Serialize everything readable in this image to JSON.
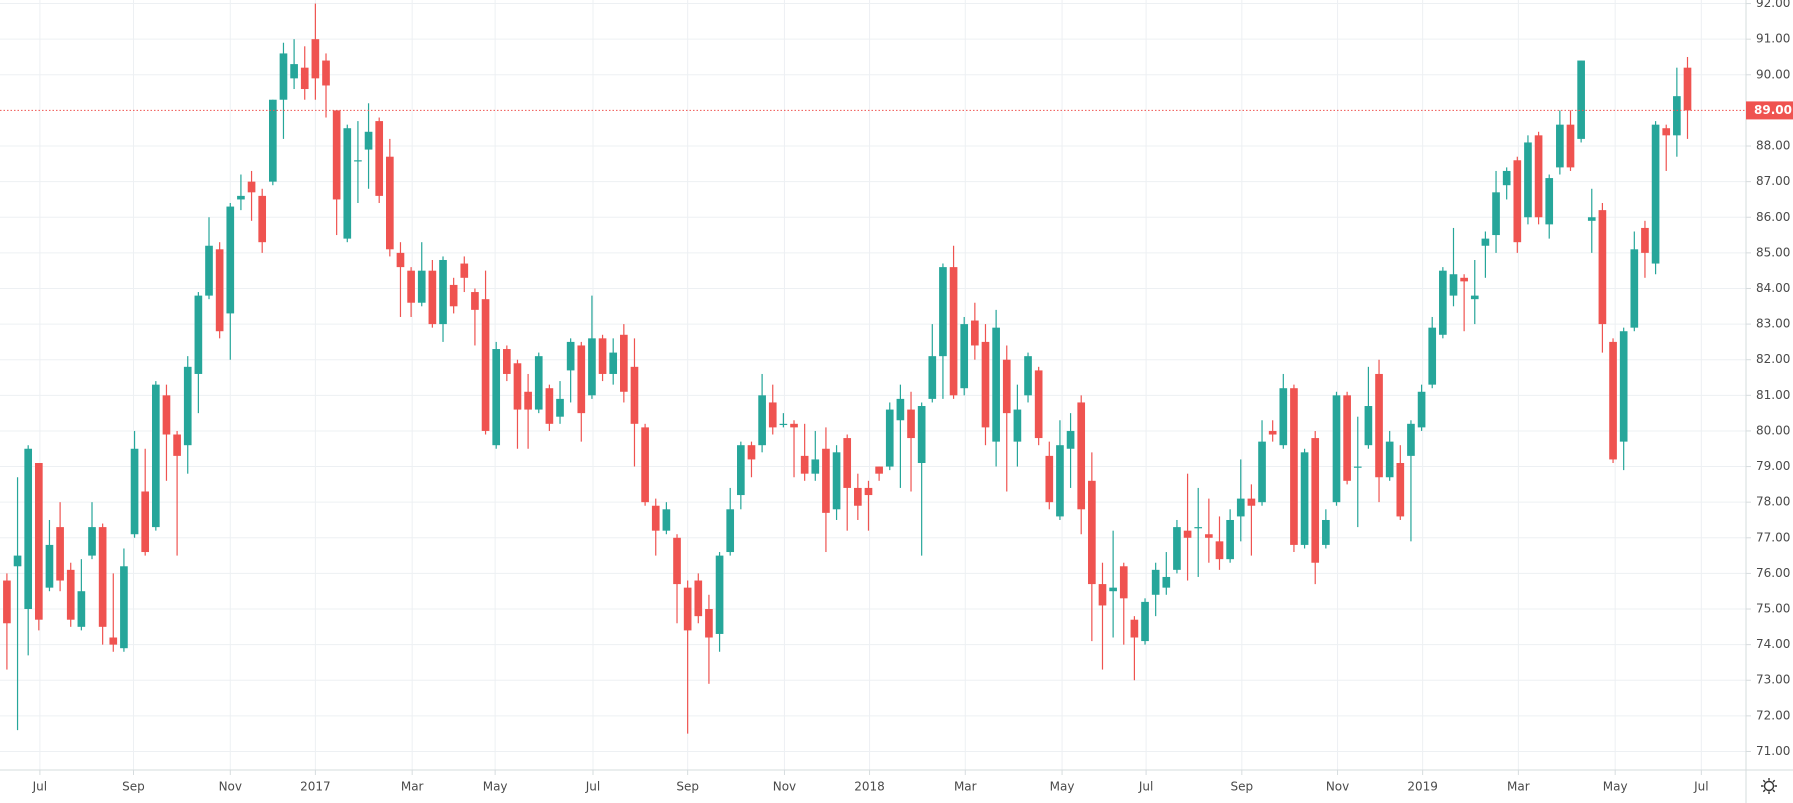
{
  "chart_data": {
    "type": "candlestick",
    "up_color": "#26a69a",
    "down_color": "#ef5350",
    "grid": true,
    "xlim": [
      -0.65,
      163.5
    ],
    "ylim": [
      70.48,
      92.1
    ],
    "yticks": [
      {
        "value": 71,
        "label": "71.00"
      },
      {
        "value": 72,
        "label": "72.00"
      },
      {
        "value": 73,
        "label": "73.00"
      },
      {
        "value": 74,
        "label": "74.00"
      },
      {
        "value": 75,
        "label": "75.00"
      },
      {
        "value": 76,
        "label": "76.00"
      },
      {
        "value": 77,
        "label": "77.00"
      },
      {
        "value": 78,
        "label": "78.00"
      },
      {
        "value": 79,
        "label": "79.00"
      },
      {
        "value": 80,
        "label": "80.00"
      },
      {
        "value": 81,
        "label": "81.00"
      },
      {
        "value": 82,
        "label": "82.00"
      },
      {
        "value": 83,
        "label": "83.00"
      },
      {
        "value": 84,
        "label": "84.00"
      },
      {
        "value": 85,
        "label": "85.00"
      },
      {
        "value": 86,
        "label": "86.00"
      },
      {
        "value": 87,
        "label": "87.00"
      },
      {
        "value": 88,
        "label": "88.00"
      },
      {
        "value": 90,
        "label": "90.00"
      },
      {
        "value": 91,
        "label": "91.00"
      },
      {
        "value": 92,
        "label": "92.00"
      }
    ],
    "xticks": [
      {
        "value": 3.1,
        "label": "Jul"
      },
      {
        "value": 11.9,
        "label": "Sep"
      },
      {
        "value": 21.0,
        "label": "Nov"
      },
      {
        "value": 29.0,
        "label": "2017"
      },
      {
        "value": 38.1,
        "label": "Mar"
      },
      {
        "value": 45.9,
        "label": "May"
      },
      {
        "value": 55.1,
        "label": "Jul"
      },
      {
        "value": 64.0,
        "label": "Sep"
      },
      {
        "value": 73.1,
        "label": "Nov"
      },
      {
        "value": 81.1,
        "label": "2018"
      },
      {
        "value": 90.1,
        "label": "Mar"
      },
      {
        "value": 99.2,
        "label": "May"
      },
      {
        "value": 107.1,
        "label": "Jul"
      },
      {
        "value": 116.1,
        "label": "Sep"
      },
      {
        "value": 125.1,
        "label": "Nov"
      },
      {
        "value": 133.1,
        "label": "2019"
      },
      {
        "value": 142.1,
        "label": "Mar"
      },
      {
        "value": 151.2,
        "label": "May"
      },
      {
        "value": 159.3,
        "label": "Jul"
      }
    ],
    "last_price": {
      "value": 89,
      "label": "89.00"
    },
    "open": [
      75.8,
      76.2,
      75.0,
      79.1,
      75.6,
      77.3,
      76.1,
      74.5,
      76.5,
      77.3,
      74.2,
      73.9,
      77.1,
      78.3,
      77.3,
      81.0,
      79.9,
      79.6,
      81.6,
      83.8,
      85.1,
      83.3,
      86.5,
      87.0,
      86.6,
      87.0,
      89.3,
      89.9,
      90.2,
      91.0,
      90.4,
      89.0,
      85.4,
      87.6,
      87.9,
      88.7,
      87.7,
      85.0,
      84.5,
      83.6,
      84.5,
      83.0,
      84.1,
      84.7,
      83.9,
      83.7,
      79.6,
      82.3,
      81.9,
      81.1,
      80.6,
      81.2,
      80.4,
      81.7,
      82.4,
      81.0,
      82.6,
      81.6,
      82.7,
      81.8,
      80.1,
      77.9,
      77.2,
      77.0,
      75.6,
      75.8,
      75.0,
      74.3,
      76.6,
      78.2,
      79.6,
      79.6,
      80.8,
      80.2,
      80.2,
      79.3,
      78.8,
      79.5,
      77.8,
      79.8,
      78.4,
      78.4,
      79.0,
      79.0,
      80.3,
      80.6,
      79.1,
      80.9,
      82.1,
      84.6,
      81.2,
      83.1,
      82.5,
      79.7,
      82.0,
      79.7,
      81.0,
      81.7,
      79.3,
      77.6,
      79.5,
      80.8,
      78.6,
      75.7,
      75.5,
      76.2,
      74.7,
      74.1,
      75.4,
      75.6,
      76.1,
      77.2,
      77.3,
      77.1,
      76.9,
      76.4,
      77.6,
      78.1,
      78.0,
      80.0,
      79.6,
      81.2,
      76.8,
      79.8,
      76.8,
      78.0,
      81.0,
      79.0,
      79.6,
      81.6,
      78.7,
      79.1,
      79.3,
      80.1,
      81.3,
      82.7,
      83.8,
      84.3,
      83.7,
      85.2,
      85.5,
      86.9,
      87.6,
      86.0,
      88.3,
      85.8,
      87.4,
      88.6,
      88.2,
      85.9,
      86.2,
      82.5,
      79.7,
      82.9,
      85.7,
      84.7,
      88.5,
      88.3,
      90.2
    ],
    "high": [
      76.0,
      78.7,
      79.6,
      79.1,
      77.5,
      78.0,
      76.3,
      76.4,
      78.0,
      77.4,
      76.0,
      76.7,
      80.0,
      79.5,
      81.4,
      81.3,
      80.0,
      82.1,
      83.9,
      86.0,
      85.3,
      86.4,
      87.2,
      87.3,
      86.8,
      89.3,
      90.9,
      91.0,
      90.8,
      92.0,
      90.6,
      89.0,
      88.6,
      88.7,
      89.2,
      88.8,
      88.2,
      85.3,
      84.6,
      85.3,
      84.8,
      84.9,
      84.3,
      84.9,
      84.0,
      84.5,
      82.5,
      82.4,
      82.0,
      81.6,
      82.2,
      81.3,
      81.4,
      82.6,
      82.5,
      83.8,
      82.7,
      82.6,
      83.0,
      82.6,
      80.2,
      78.1,
      78.0,
      77.1,
      75.8,
      76.0,
      75.4,
      76.6,
      78.4,
      79.7,
      79.7,
      81.6,
      81.3,
      80.5,
      80.3,
      80.2,
      80.0,
      80.1,
      79.6,
      79.9,
      78.8,
      78.6,
      79.0,
      80.8,
      81.3,
      81.1,
      80.8,
      83.0,
      84.7,
      85.2,
      83.2,
      83.6,
      83.0,
      83.4,
      82.4,
      81.3,
      82.2,
      81.8,
      79.7,
      80.3,
      80.5,
      81.0,
      79.4,
      76.3,
      77.2,
      76.3,
      74.8,
      75.3,
      76.3,
      76.6,
      77.5,
      78.8,
      78.4,
      78.1,
      77.6,
      77.8,
      79.2,
      78.5,
      80.3,
      80.3,
      81.6,
      81.3,
      79.5,
      80.0,
      77.8,
      81.1,
      81.1,
      80.4,
      81.8,
      82.0,
      80.0,
      79.6,
      80.3,
      81.3,
      83.2,
      84.6,
      85.7,
      84.4,
      84.8,
      85.6,
      87.3,
      87.4,
      87.7,
      88.3,
      88.4,
      87.2,
      89.0,
      89.0,
      90.4,
      86.8,
      86.4,
      82.6,
      82.9,
      85.6,
      85.9,
      88.7,
      88.6,
      90.2,
      90.5
    ],
    "low": [
      73.3,
      71.6,
      73.7,
      74.4,
      75.5,
      75.5,
      74.5,
      74.4,
      76.4,
      74.0,
      73.8,
      73.8,
      77.0,
      76.5,
      77.2,
      78.6,
      76.5,
      78.8,
      80.5,
      83.7,
      82.6,
      82.0,
      86.2,
      85.9,
      85.0,
      86.9,
      88.2,
      89.6,
      89.3,
      89.3,
      88.8,
      85.5,
      85.3,
      86.4,
      86.8,
      86.4,
      84.9,
      83.2,
      83.2,
      83.5,
      82.9,
      82.5,
      83.3,
      83.9,
      82.4,
      79.9,
      79.5,
      81.4,
      79.5,
      79.5,
      80.5,
      80.0,
      80.2,
      80.8,
      79.7,
      80.9,
      81.4,
      81.3,
      80.8,
      79.0,
      77.9,
      76.5,
      77.1,
      74.6,
      71.5,
      74.6,
      72.9,
      73.8,
      76.5,
      77.8,
      78.7,
      79.4,
      79.9,
      80.1,
      78.7,
      78.6,
      78.6,
      76.6,
      77.5,
      77.2,
      77.5,
      77.2,
      78.6,
      78.9,
      78.4,
      78.3,
      76.5,
      80.8,
      80.9,
      80.9,
      81.0,
      82.0,
      79.6,
      79.0,
      78.3,
      79.0,
      80.8,
      79.6,
      77.8,
      77.5,
      78.4,
      77.1,
      74.1,
      73.3,
      74.2,
      74.0,
      73.0,
      74.0,
      74.8,
      75.4,
      76.0,
      75.8,
      75.9,
      76.3,
      76.1,
      76.3,
      76.9,
      76.5,
      77.9,
      79.7,
      79.5,
      76.6,
      76.7,
      75.7,
      76.7,
      77.9,
      78.5,
      77.3,
      79.5,
      78.0,
      78.6,
      77.5,
      76.9,
      80.0,
      81.2,
      82.6,
      83.5,
      82.8,
      83.0,
      84.3,
      85.0,
      86.5,
      85.0,
      85.8,
      85.8,
      85.4,
      87.2,
      87.3,
      88.1,
      85.0,
      82.2,
      79.1,
      78.9,
      82.8,
      84.3,
      84.4,
      87.3,
      87.7,
      88.2
    ],
    "close": [
      74.6,
      76.5,
      79.5,
      74.7,
      76.8,
      75.8,
      74.7,
      75.5,
      77.3,
      74.5,
      74.0,
      76.2,
      79.5,
      76.6,
      81.3,
      79.9,
      79.3,
      81.8,
      83.8,
      85.2,
      82.8,
      86.3,
      86.6,
      86.7,
      85.3,
      89.3,
      90.6,
      90.3,
      89.6,
      89.9,
      89.7,
      86.5,
      88.5,
      87.6,
      88.4,
      86.6,
      85.1,
      84.6,
      83.6,
      84.5,
      83.0,
      84.8,
      83.5,
      84.3,
      83.4,
      80.0,
      82.3,
      81.6,
      80.6,
      80.6,
      82.1,
      80.2,
      80.9,
      82.5,
      80.5,
      82.6,
      81.6,
      82.2,
      81.1,
      80.2,
      78.0,
      77.2,
      77.8,
      75.7,
      74.4,
      74.8,
      74.2,
      76.5,
      77.8,
      79.6,
      79.2,
      81.0,
      80.1,
      80.2,
      80.1,
      78.8,
      79.2,
      77.7,
      79.4,
      78.4,
      77.9,
      78.2,
      78.8,
      80.6,
      80.9,
      79.8,
      80.7,
      82.1,
      84.6,
      81.0,
      83.0,
      82.4,
      80.1,
      82.9,
      80.5,
      80.6,
      82.1,
      79.8,
      78.0,
      79.6,
      80.0,
      77.8,
      75.7,
      75.1,
      75.6,
      75.3,
      74.2,
      75.2,
      76.1,
      75.9,
      77.3,
      77.0,
      77.3,
      77.0,
      76.4,
      77.5,
      78.1,
      77.9,
      79.7,
      79.9,
      81.2,
      76.8,
      79.4,
      76.3,
      77.5,
      81.0,
      78.6,
      79.0,
      80.7,
      78.7,
      79.7,
      77.6,
      80.2,
      81.1,
      82.9,
      84.5,
      84.4,
      84.2,
      83.8,
      85.4,
      86.7,
      87.3,
      85.3,
      88.1,
      86.0,
      87.1,
      88.6,
      87.4,
      90.4,
      86.0,
      83.0,
      79.2,
      82.8,
      85.1,
      85.0,
      88.6,
      88.3,
      89.4,
      89.0
    ]
  }
}
